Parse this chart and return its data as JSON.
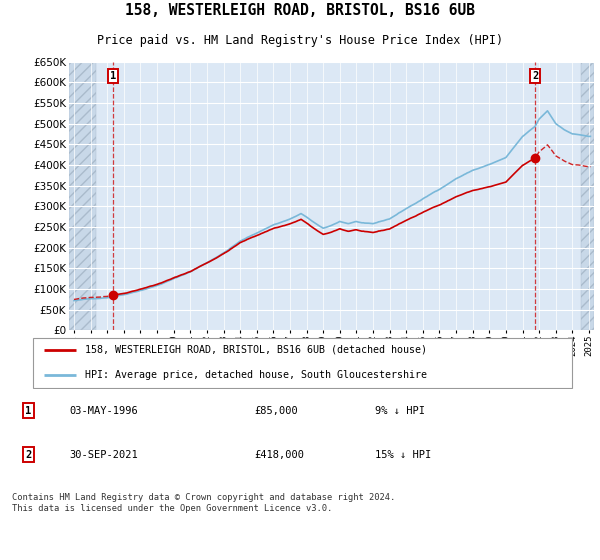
{
  "title": "158, WESTERLEIGH ROAD, BRISTOL, BS16 6UB",
  "subtitle": "Price paid vs. HM Land Registry's House Price Index (HPI)",
  "legend_line1": "158, WESTERLEIGH ROAD, BRISTOL, BS16 6UB (detached house)",
  "legend_line2": "HPI: Average price, detached house, South Gloucestershire",
  "annotation1_label": "1",
  "annotation1_date": "03-MAY-1996",
  "annotation1_price": "£85,000",
  "annotation1_note": "9% ↓ HPI",
  "annotation2_label": "2",
  "annotation2_date": "30-SEP-2021",
  "annotation2_price": "£418,000",
  "annotation2_note": "15% ↓ HPI",
  "footer": "Contains HM Land Registry data © Crown copyright and database right 2024.\nThis data is licensed under the Open Government Licence v3.0.",
  "sale1_year": 1996.37,
  "sale1_value": 85000,
  "sale2_year": 2021.75,
  "sale2_value": 418000,
  "ylim_min": 0,
  "ylim_max": 650000,
  "xlim_min": 1993.7,
  "xlim_max": 2025.3,
  "hpi_color": "#7ab8d9",
  "price_color": "#cc0000",
  "background_plot": "#dce8f5",
  "background_hatch": "#c8d8e8",
  "grid_color": "#ffffff",
  "hpi_seed": 42,
  "hpi_base_years": [
    1994.0,
    1995.0,
    1996.0,
    1997.0,
    1998.0,
    1999.0,
    2000.0,
    2001.0,
    2002.0,
    2003.0,
    2004.0,
    2005.0,
    2006.0,
    2007.0,
    2007.67,
    2008.5,
    2009.0,
    2009.5,
    2010.0,
    2010.5,
    2011.0,
    2011.5,
    2012.0,
    2013.0,
    2014.0,
    2015.0,
    2016.0,
    2017.0,
    2018.0,
    2019.0,
    2020.0,
    2021.0,
    2021.75,
    2022.0,
    2022.5,
    2023.0,
    2023.5,
    2024.0,
    2024.5,
    2025.0
  ],
  "hpi_base_values": [
    72000,
    76000,
    80000,
    88000,
    99000,
    111000,
    127000,
    144000,
    166000,
    190000,
    218000,
    238000,
    258000,
    272000,
    285000,
    262000,
    248000,
    255000,
    265000,
    260000,
    265000,
    260000,
    258000,
    270000,
    295000,
    318000,
    342000,
    368000,
    388000,
    402000,
    418000,
    468000,
    492000,
    510000,
    530000,
    500000,
    485000,
    475000,
    472000,
    468000
  ]
}
